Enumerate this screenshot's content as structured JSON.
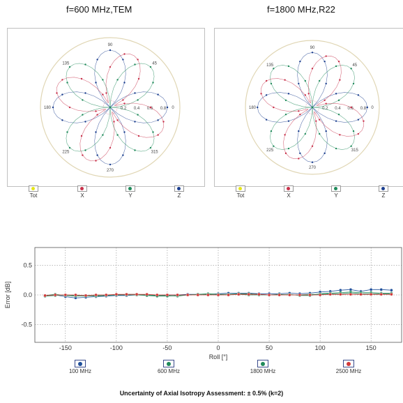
{
  "titles": {
    "left": "f=600 MHz,TEM",
    "right": "f=1800 MHz,R22"
  },
  "polar_legend": [
    "Tot",
    "X",
    "Y",
    "Z"
  ],
  "polar_colors": {
    "Tot": "#e6e61a",
    "X": "#c8324b",
    "Y": "#1f8a5a",
    "Z": "#1c3f8f"
  },
  "bottom_legend": [
    "100 MHz",
    "600 MHz",
    "1800 MHz",
    "2500 MHz"
  ],
  "bottom_colors": [
    "#1f4f9a",
    "#1f8a5a",
    "#1f8a5a",
    "#d23a3a"
  ],
  "footnote": "Uncertainty of Axial Isotropy Assessment: ± 0.5% (k=2)",
  "chart_data": [
    {
      "type": "scatter",
      "subtype": "polar",
      "title": "f=600 MHz,TEM",
      "angle_labels": [
        "90",
        "45",
        "0",
        "315",
        "270",
        "225",
        "180",
        "135"
      ],
      "radial_labels": [
        "0.2",
        "0.4",
        "0.6",
        "0.8"
      ],
      "radial_range": [
        0,
        1
      ],
      "legend": [
        "Tot",
        "X",
        "Y",
        "Z"
      ]
    },
    {
      "type": "scatter",
      "subtype": "polar",
      "title": "f=1800 MHz,R22",
      "angle_labels": [
        "90",
        "45",
        "0",
        "315",
        "270",
        "225",
        "180",
        "135"
      ],
      "radial_labels": [
        "0.2",
        "0.4",
        "0.6",
        "0.8"
      ],
      "radial_range": [
        0,
        1
      ],
      "legend": [
        "Tot",
        "X",
        "Y",
        "Z"
      ]
    },
    {
      "type": "line",
      "xlabel": "Roll [°]",
      "ylabel": "Error [dB]",
      "xlim": [
        -180,
        180
      ],
      "ylim": [
        -0.8,
        0.8
      ],
      "xticks": [
        -150,
        -100,
        -50,
        0,
        50,
        100,
        150
      ],
      "yticks": [
        0.5,
        0.0,
        -0.5
      ],
      "ytick_labels": [
        "0.5",
        "0.0",
        "-0.5"
      ],
      "grid": true,
      "x": [
        -170,
        -160,
        -150,
        -140,
        -130,
        -120,
        -110,
        -100,
        -90,
        -80,
        -70,
        -60,
        -50,
        -40,
        -30,
        -20,
        -10,
        0,
        10,
        20,
        30,
        40,
        50,
        60,
        70,
        80,
        90,
        100,
        110,
        120,
        130,
        140,
        150,
        160,
        170
      ],
      "series": [
        {
          "name": "100 MHz",
          "values": [
            -0.02,
            0.0,
            -0.03,
            -0.05,
            -0.04,
            -0.03,
            -0.02,
            -0.01,
            -0.01,
            0.0,
            0.0,
            -0.01,
            0.0,
            0.0,
            0.01,
            0.01,
            0.01,
            0.02,
            0.03,
            0.03,
            0.03,
            0.02,
            0.02,
            0.02,
            0.03,
            0.02,
            0.03,
            0.05,
            0.06,
            0.08,
            0.09,
            0.06,
            0.09,
            0.09,
            0.08
          ]
        },
        {
          "name": "600 MHz",
          "values": [
            -0.01,
            0.01,
            -0.01,
            -0.02,
            -0.01,
            -0.02,
            -0.01,
            0.0,
            0.01,
            0.01,
            0.0,
            -0.01,
            -0.01,
            -0.02,
            0.0,
            0.01,
            0.02,
            0.01,
            0.01,
            0.02,
            0.02,
            0.01,
            0.0,
            0.0,
            0.01,
            -0.01,
            -0.01,
            0.02,
            0.03,
            0.04,
            0.05,
            0.04,
            0.04,
            0.03,
            0.03
          ]
        },
        {
          "name": "1800 MHz",
          "values": [
            -0.02,
            -0.01,
            0.0,
            -0.01,
            -0.02,
            -0.01,
            0.0,
            0.0,
            0.0,
            0.0,
            -0.01,
            -0.02,
            -0.02,
            -0.01,
            0.0,
            0.01,
            0.01,
            0.0,
            0.01,
            0.01,
            0.0,
            0.0,
            0.0,
            0.01,
            0.0,
            0.0,
            0.01,
            0.01,
            0.02,
            0.02,
            0.03,
            0.02,
            0.02,
            0.02,
            0.02
          ]
        },
        {
          "name": "2500 MHz",
          "values": [
            -0.01,
            0.0,
            0.0,
            0.0,
            -0.01,
            0.0,
            0.0,
            0.01,
            0.01,
            0.01,
            0.01,
            0.0,
            0.0,
            0.0,
            0.0,
            0.0,
            0.0,
            0.0,
            0.0,
            0.01,
            0.01,
            0.01,
            0.0,
            0.0,
            0.0,
            0.0,
            0.0,
            0.0,
            0.01,
            0.01,
            0.01,
            0.01,
            0.01,
            0.01,
            0.01
          ]
        }
      ]
    }
  ]
}
